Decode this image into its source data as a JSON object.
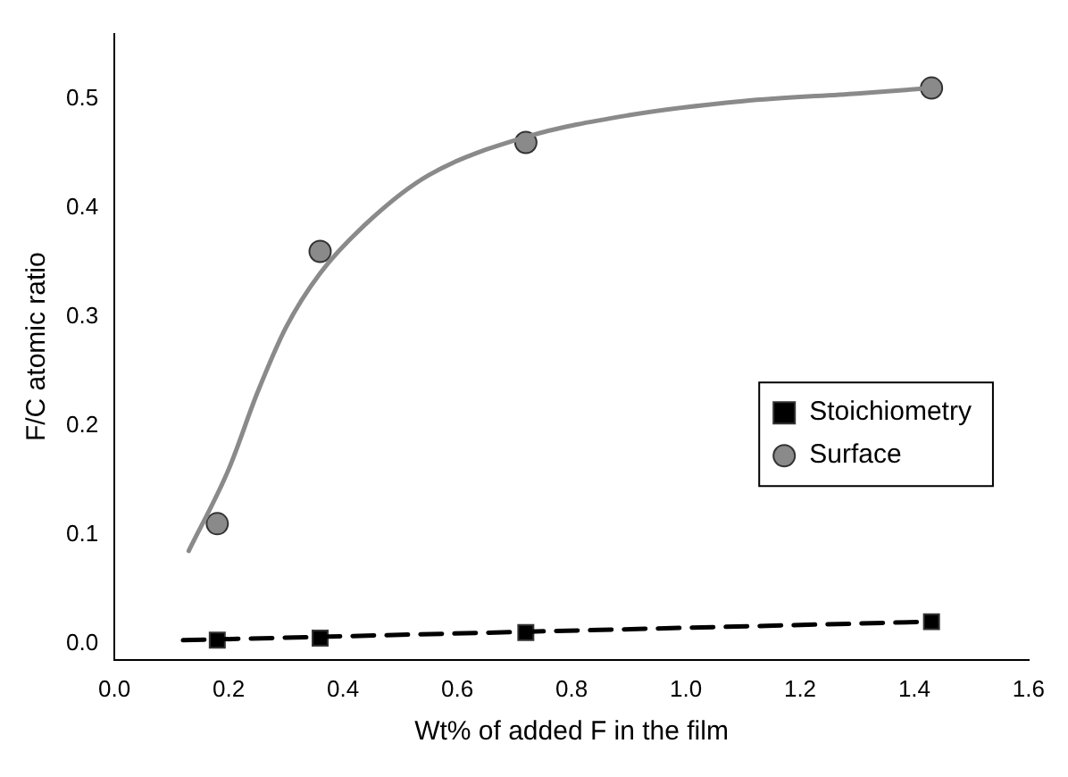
{
  "chart_data": {
    "type": "scatter",
    "xlabel": "Wt% of added F in the film",
    "ylabel": "F/C atomic ratio",
    "xlim": [
      0,
      1.6
    ],
    "ylim": [
      -0.015,
      0.56
    ],
    "xticks": [
      {
        "value": 0,
        "label": "0.0"
      },
      0.2,
      0.4,
      0.6,
      0.8,
      {
        "value": 1,
        "label": "1.0"
      },
      1.2,
      1.4,
      1.6
    ],
    "yticks": [
      {
        "value": 0,
        "label": "0.0"
      },
      0.1,
      0.2,
      0.3,
      0.4,
      0.5
    ],
    "legend": "right",
    "grid": false,
    "series": [
      {
        "type": "line",
        "color": "#000000",
        "line_style": "dashed",
        "marker": "none",
        "x": [
          0.12,
          1.43
        ],
        "values": [
          0.003,
          0.02
        ]
      },
      {
        "type": "line",
        "color": "#8a8a8a",
        "line_style": "solid",
        "marker": "none",
        "x": [
          0.13,
          0.2,
          0.25,
          0.3,
          0.36,
          0.45,
          0.55,
          0.72,
          0.9,
          1.1,
          1.3,
          1.43
        ],
        "values": [
          0.085,
          0.16,
          0.23,
          0.29,
          0.34,
          0.39,
          0.43,
          0.465,
          0.485,
          0.498,
          0.505,
          0.51
        ]
      },
      {
        "name": "Stoichiometry",
        "color": "#000000",
        "marker": "square",
        "x": [
          0.18,
          0.36,
          0.72,
          1.43
        ],
        "values": [
          0.003,
          0.005,
          0.01,
          0.02
        ]
      },
      {
        "name": "Surface",
        "color": "#8a8a8a",
        "marker": "circle",
        "x": [
          0.18,
          0.36,
          0.72,
          1.43
        ],
        "values": [
          0.11,
          0.36,
          0.46,
          0.51
        ]
      }
    ]
  }
}
